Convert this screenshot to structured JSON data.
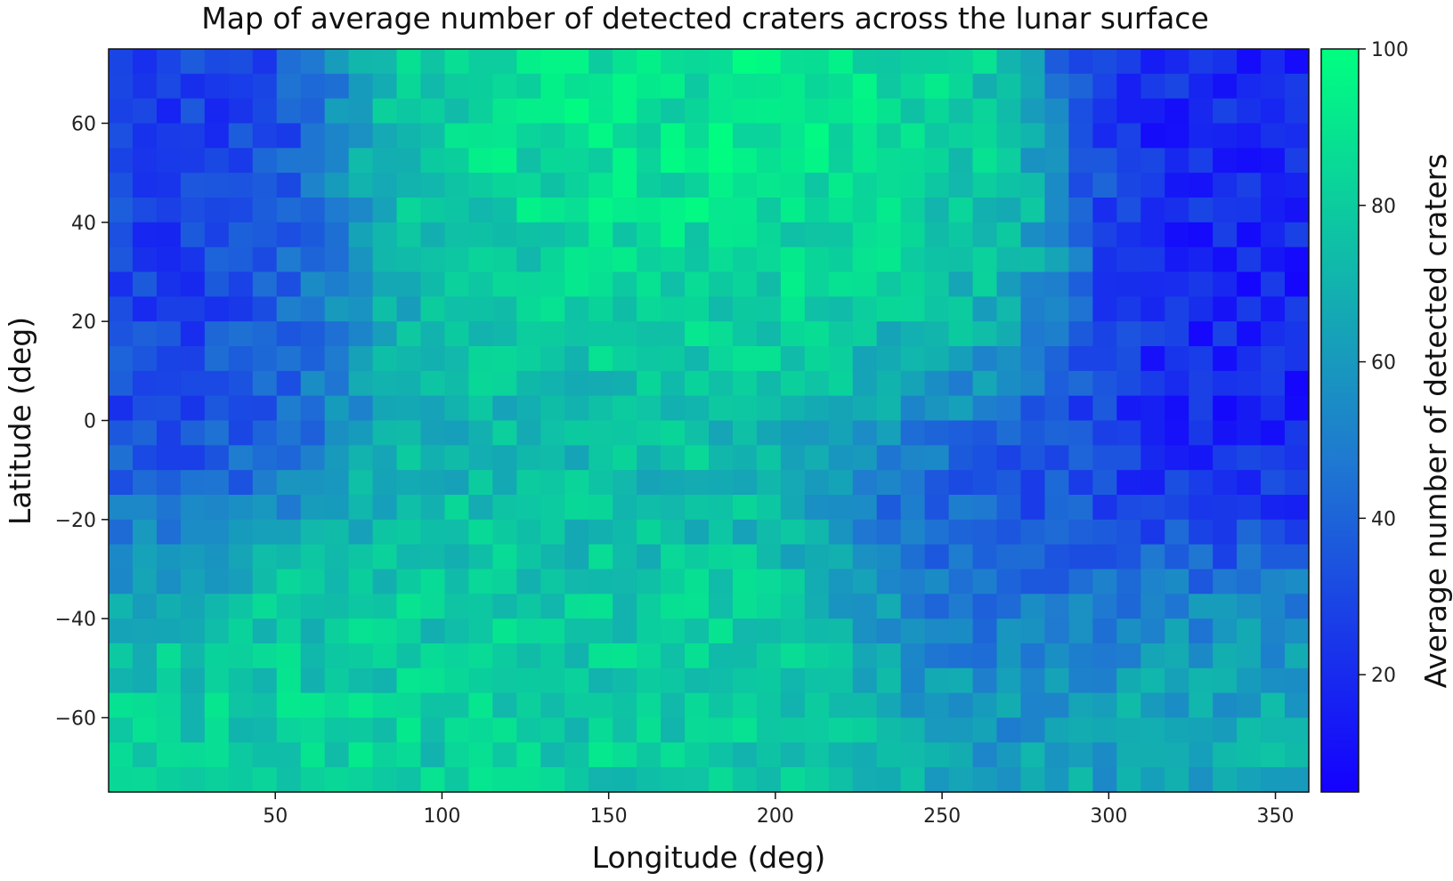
{
  "chart_data": {
    "type": "heatmap",
    "title": "Map of average number of detected craters across the lunar surface",
    "xlabel": "Longitude (deg)",
    "ylabel": "Latitude (deg)",
    "colorbar_label": "Average number of detected craters",
    "xlim": [
      0,
      360
    ],
    "ylim": [
      -75,
      75
    ],
    "color_range": [
      5,
      100
    ],
    "colormap": [
      "#1400ff",
      "#00ff80"
    ],
    "xticks": [
      50,
      100,
      150,
      200,
      250,
      300,
      350
    ],
    "xtick_labels": [
      "50",
      "100",
      "150",
      "200",
      "250",
      "300",
      "350"
    ],
    "yticks": [
      60,
      40,
      20,
      0,
      -20,
      -40,
      -60
    ],
    "ytick_labels": [
      "60",
      "40",
      "20",
      "0",
      "−20",
      "−40",
      "−60"
    ],
    "colorbar_ticks": [
      100,
      80,
      60,
      40,
      20
    ],
    "colorbar_tick_labels": [
      "100",
      "80",
      "60",
      "40",
      "20"
    ],
    "grid": false,
    "cell_size_deg": [
      7.2,
      5.0
    ],
    "regions": [
      {
        "lon": 20,
        "lat": 30,
        "value": 25,
        "spread": [
          35,
          35
        ]
      },
      {
        "lon": 20,
        "lat": 5,
        "value": 35,
        "spread": [
          45,
          30
        ]
      },
      {
        "lon": 170,
        "lat": 40,
        "value": 92,
        "spread": [
          60,
          30
        ]
      },
      {
        "lon": 140,
        "lat": 5,
        "value": 72,
        "spread": [
          70,
          40
        ]
      },
      {
        "lon": 245,
        "lat": 30,
        "value": 82,
        "spread": [
          35,
          30
        ]
      },
      {
        "lon": 80,
        "lat": -45,
        "value": 80,
        "spread": [
          90,
          25
        ]
      },
      {
        "lon": 175,
        "lat": -55,
        "value": 82,
        "spread": [
          100,
          25
        ]
      },
      {
        "lon": 330,
        "lat": 20,
        "value": 18,
        "spread": [
          35,
          55
        ]
      },
      {
        "lon": 265,
        "lat": -25,
        "value": 30,
        "spread": [
          40,
          40
        ]
      },
      {
        "lon": 320,
        "lat": -55,
        "value": 70,
        "spread": [
          50,
          25
        ]
      }
    ]
  }
}
